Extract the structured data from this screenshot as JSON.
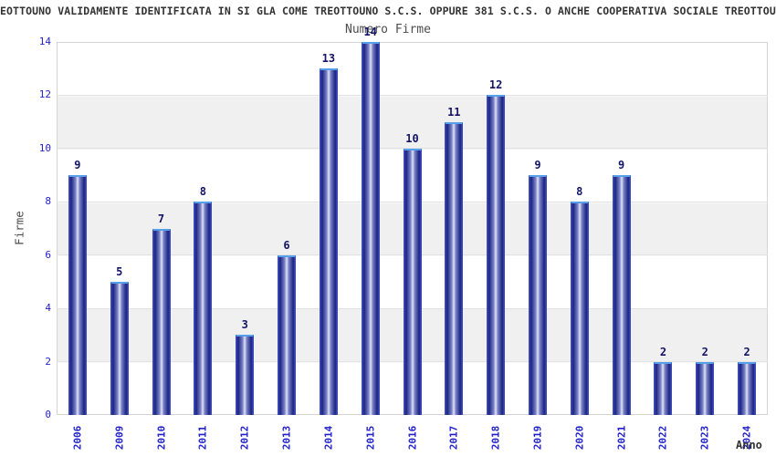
{
  "title": "EOTTOUNO VALIDAMENTE IDENTIFICATA IN SI GLA COME TREOTTOUNO S.C.S. OPPURE 381 S.C.S. O ANCHE COOPERATIVA SOCIALE TREOTTOUN",
  "chart_data": {
    "type": "bar",
    "title": "Numero Firme",
    "xlabel": "Anno",
    "ylabel": "Firme",
    "categories": [
      "2006",
      "2009",
      "2010",
      "2011",
      "2012",
      "2013",
      "2014",
      "2015",
      "2016",
      "2017",
      "2018",
      "2019",
      "2020",
      "2021",
      "2022",
      "2023",
      "2024"
    ],
    "values": [
      9,
      5,
      7,
      8,
      3,
      6,
      13,
      14,
      10,
      11,
      12,
      9,
      8,
      9,
      2,
      2,
      2
    ],
    "ylim": [
      0,
      14
    ],
    "yticks": [
      0,
      2,
      4,
      6,
      8,
      10,
      12,
      14
    ],
    "bar_labels": true,
    "grid": "horizontal-bands",
    "legend": "none",
    "colors": {
      "bar_edge": "#3a4ab8",
      "bar_dark": "#1c2380",
      "bar_mid": "#7b84c9",
      "bar_light": "#e2e4f4",
      "bar_cap": "#55a0e8",
      "tick_text": "#2222cc",
      "value_text": "#141466",
      "band_gray": "#f0f0f0",
      "plot_border": "#d4d4d4",
      "title_text": "#333333",
      "subtitle_text": "#4d4d4d"
    }
  }
}
